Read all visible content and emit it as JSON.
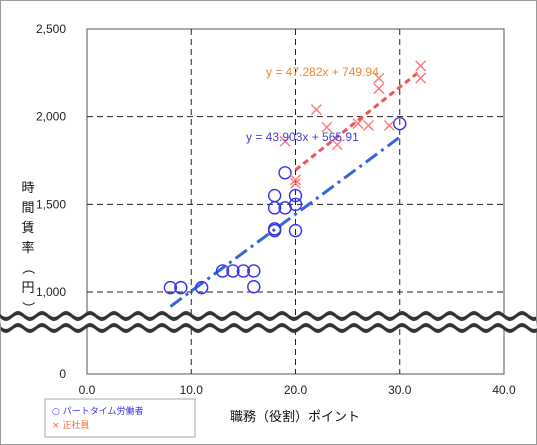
{
  "chart_data": {
    "type": "scatter",
    "title": "",
    "xlabel": "職務（役割）ポイント",
    "ylabel": "時間賃率（円）",
    "xlim": [
      0,
      40
    ],
    "ylim_upper": [
      1000,
      2500
    ],
    "x_ticks": [
      "0.0",
      "10.0",
      "20.0",
      "30.0",
      "40.0"
    ],
    "y_ticks": [
      "0",
      "1,000",
      "1,500",
      "2,000",
      "2,500"
    ],
    "axis_break": true,
    "grid": "dashed",
    "legend_position": "bottom-left",
    "series": [
      {
        "name": "パートタイム労働者",
        "marker": "○",
        "color": "#3333ee",
        "points": [
          [
            8,
            1025
          ],
          [
            9,
            1025
          ],
          [
            11,
            1025
          ],
          [
            13,
            1120
          ],
          [
            14,
            1120
          ],
          [
            15,
            1120
          ],
          [
            16,
            1120
          ],
          [
            16,
            1030
          ],
          [
            18,
            1350
          ],
          [
            18,
            1360
          ],
          [
            18,
            1480
          ],
          [
            18,
            1550
          ],
          [
            19,
            1480
          ],
          [
            19,
            1680
          ],
          [
            20,
            1350
          ],
          [
            20,
            1500
          ],
          [
            20,
            1550
          ],
          [
            30,
            1960
          ]
        ],
        "trendline": {
          "slope": 43.903,
          "intercept": 565.91,
          "x_range": [
            8,
            30
          ],
          "label": "y = 43.903x + 565.91",
          "color": "#3366dd"
        }
      },
      {
        "name": "正社員",
        "marker": "×",
        "color": "#ff7777",
        "points": [
          [
            19,
            1860
          ],
          [
            20,
            1640
          ],
          [
            20,
            1620
          ],
          [
            22,
            2040
          ],
          [
            23,
            1940
          ],
          [
            24,
            1840
          ],
          [
            26,
            1960
          ],
          [
            27,
            1950
          ],
          [
            28,
            2220
          ],
          [
            28,
            2160
          ],
          [
            29,
            1950
          ],
          [
            32,
            2290
          ],
          [
            32,
            2220
          ]
        ],
        "trendline": {
          "slope": 47.282,
          "intercept": 749.94,
          "x_range": [
            20,
            32
          ],
          "label": "y = 47.282x + 749.94",
          "color": "#ee5555"
        }
      }
    ]
  },
  "colors": {
    "series1_label": "#3333ee",
    "series2_label": "#ff6633",
    "eq1": "#4444cc",
    "eq2": "#ee8833"
  }
}
